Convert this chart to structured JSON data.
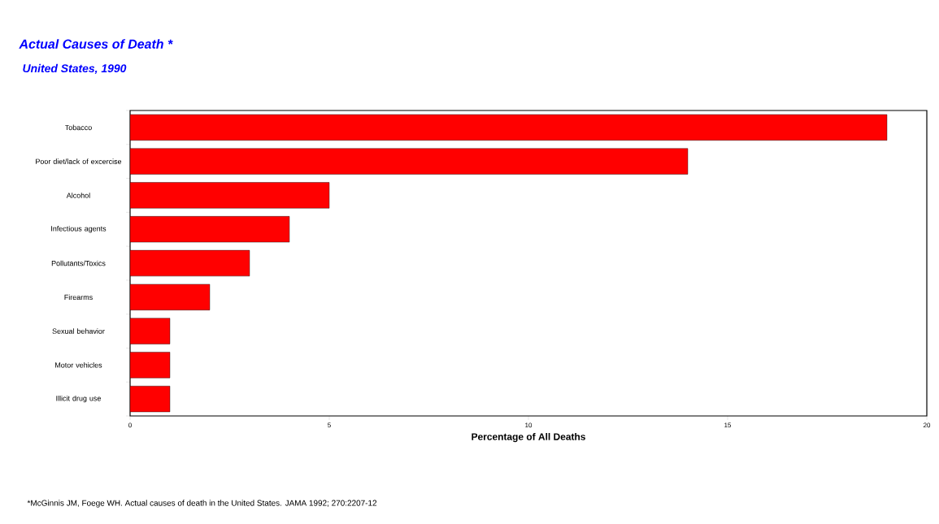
{
  "chart_data": {
    "type": "bar",
    "orientation": "horizontal",
    "title": "Actual Causes of Death *",
    "subtitle": "United States, 1990",
    "categories": [
      "Tobacco",
      "Poor diet/lack of excercise",
      "Alcohol",
      "Infectious agents",
      "Pollutants/Toxics",
      "Firearms",
      "Sexual behavior",
      "Motor vehicles",
      "Illicit drug use"
    ],
    "values": [
      19,
      14,
      5,
      4,
      3,
      2,
      1,
      1,
      1
    ],
    "color": "#ff0000",
    "xlabel": "Percentage of All Deaths",
    "xlim": [
      0,
      20
    ],
    "xticks": [
      0,
      5,
      10,
      15,
      20
    ],
    "annotations": [
      "*McGinnis JM, Foege WH. Actual causes of death in the United States. JAMA 1992; 270:2207-12"
    ]
  }
}
